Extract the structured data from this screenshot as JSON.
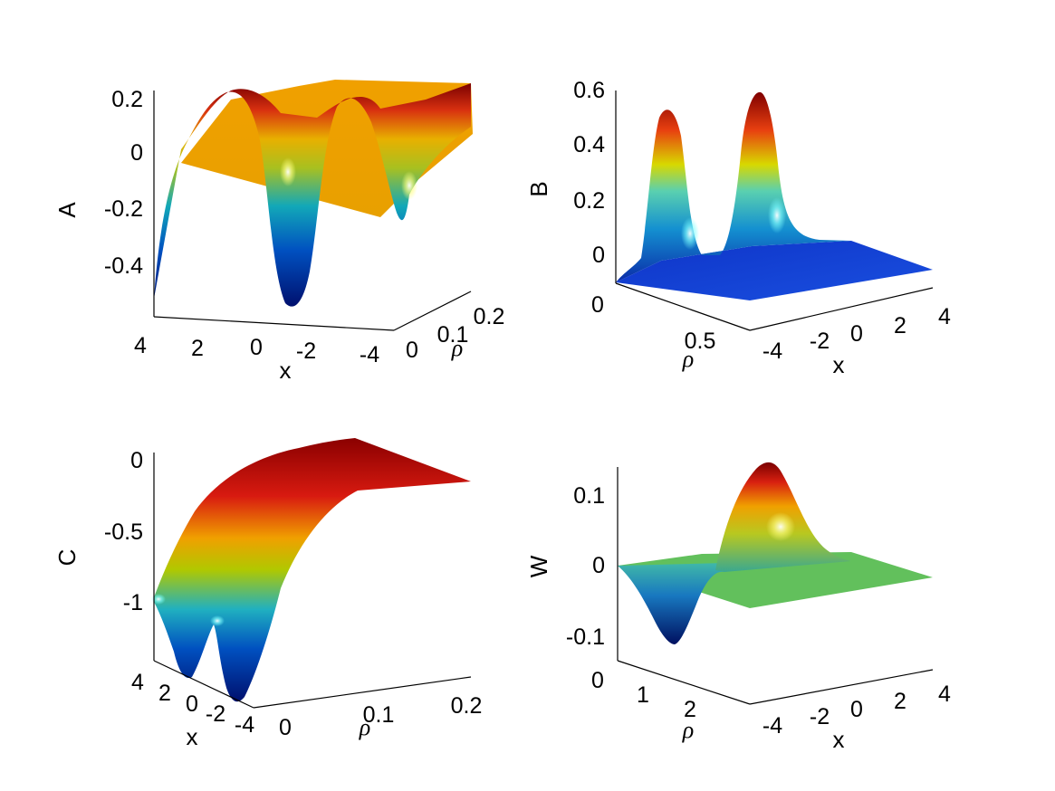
{
  "chart_data": [
    {
      "id": "A",
      "type": "surface",
      "zlabel": "A",
      "xlabel": "x",
      "ylabel": "ρ",
      "z_ticks": [
        "0.2",
        "0",
        "-0.2",
        "-0.4"
      ],
      "x_ticks": [
        "4",
        "2",
        "0",
        "-2",
        "-4"
      ],
      "rho_ticks": [
        "0",
        "0.1",
        "0.2"
      ],
      "zlim": [
        -0.55,
        0.2
      ],
      "peaks_x": [
        1.7,
        -1.7
      ],
      "grid": false
    },
    {
      "id": "B",
      "type": "surface",
      "zlabel": "B",
      "xlabel": "x",
      "ylabel": "ρ",
      "z_ticks": [
        "0.6",
        "0.4",
        "0.2",
        "0"
      ],
      "x_ticks": [
        "-4",
        "-2",
        "0",
        "2",
        "4"
      ],
      "rho_ticks": [
        "0",
        "0.5"
      ],
      "zlim": [
        0,
        0.6
      ],
      "peaks_x": [
        -1.7,
        1.7
      ],
      "grid": false
    },
    {
      "id": "C",
      "type": "surface",
      "zlabel": "C",
      "xlabel": "x",
      "ylabel": "ρ",
      "z_ticks": [
        "0",
        "-0.5",
        "-1"
      ],
      "x_ticks": [
        "4",
        "2",
        "0",
        "-2",
        "-4"
      ],
      "rho_ticks": [
        "0",
        "0.1",
        "0.2"
      ],
      "zlim": [
        -1.35,
        0
      ],
      "peaks_x": [
        1.7,
        -1.7
      ],
      "grid": false
    },
    {
      "id": "W",
      "type": "surface",
      "zlabel": "W",
      "xlabel": "x",
      "ylabel": "ρ",
      "z_ticks": [
        "0.1",
        "0",
        "-0.1"
      ],
      "x_ticks": [
        "-4",
        "-2",
        "0",
        "2",
        "4"
      ],
      "rho_ticks": [
        "0",
        "1",
        "2"
      ],
      "zlim": [
        -0.12,
        0.14
      ],
      "grid": false
    }
  ]
}
